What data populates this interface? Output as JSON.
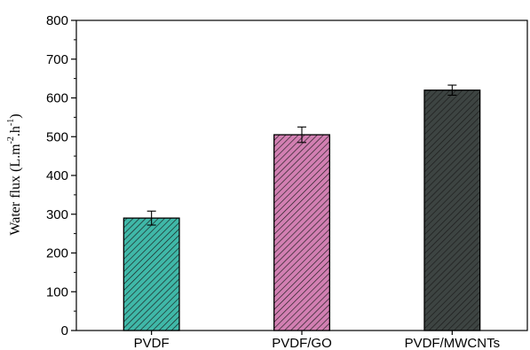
{
  "chart_data": {
    "type": "bar",
    "title": "",
    "xlabel": "",
    "ylabel": {
      "base": "Water flux (L.m",
      "exp1": "-2",
      "mid": ".h",
      "exp2": "-1",
      "end": ")"
    },
    "categories": [
      "PVDF",
      "PVDF/GO",
      "PVDF/MWCNTs"
    ],
    "values": [
      290,
      505,
      620
    ],
    "errors": [
      18,
      20,
      13
    ],
    "ylim": [
      0,
      800
    ],
    "yticks": [
      0,
      100,
      200,
      300,
      400,
      500,
      600,
      700,
      800
    ],
    "bar_colors": [
      "#3fb8a8",
      "#d27fb2",
      "#3d4442"
    ],
    "hatch": "diagonal",
    "grid": false,
    "legend": "none"
  }
}
